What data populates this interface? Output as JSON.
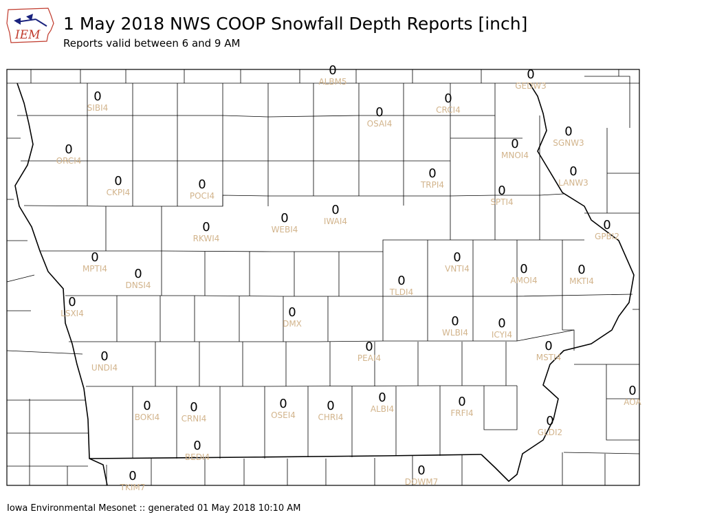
{
  "header": {
    "logo_text": "IEM",
    "title": "1 May 2018 NWS COOP Snowfall Depth Reports [inch]",
    "subtitle": "Reports valid between 6 and 9 AM"
  },
  "footer": {
    "text": "Iowa Environmental Mesonet :: generated 01 May 2018 10:10 AM"
  },
  "colors": {
    "station_label": "#d2b48c",
    "value_label": "#000000",
    "county_lines": "#000000",
    "logo_accent": "#c0392b",
    "logo_state": "#1a237e"
  },
  "stations": [
    {
      "id": "ALBM5",
      "value": "0"
    },
    {
      "id": "GEDW3",
      "value": "0"
    },
    {
      "id": "SIBI4",
      "value": "0"
    },
    {
      "id": "CRCI4",
      "value": "0"
    },
    {
      "id": "OSAI4",
      "value": "0"
    },
    {
      "id": "SGNW3",
      "value": "0"
    },
    {
      "id": "ORCI4",
      "value": "0"
    },
    {
      "id": "MNOI4",
      "value": "0"
    },
    {
      "id": "LANW3",
      "value": "0"
    },
    {
      "id": "CKPI4",
      "value": "0"
    },
    {
      "id": "POCI4",
      "value": "0"
    },
    {
      "id": "TRPI4",
      "value": "0"
    },
    {
      "id": "SPTI4",
      "value": "0"
    },
    {
      "id": "IWAI4",
      "value": "0"
    },
    {
      "id": "WEBI4",
      "value": "0"
    },
    {
      "id": "RKWI4",
      "value": "0"
    },
    {
      "id": "GPBI2",
      "value": "0"
    },
    {
      "id": "MPTI4",
      "value": "0"
    },
    {
      "id": "VNTI4",
      "value": "0"
    },
    {
      "id": "DNSI4",
      "value": "0"
    },
    {
      "id": "AMOI4",
      "value": "0"
    },
    {
      "id": "MKTI4",
      "value": "0"
    },
    {
      "id": "TLDI4",
      "value": "0"
    },
    {
      "id": "LSXI4",
      "value": "0"
    },
    {
      "id": "DMX",
      "value": "0"
    },
    {
      "id": "WLBI4",
      "value": "0"
    },
    {
      "id": "ICYI4",
      "value": "0"
    },
    {
      "id": "PEAI4",
      "value": "0"
    },
    {
      "id": "MSTI4",
      "value": "0"
    },
    {
      "id": "UNDI4",
      "value": "0"
    },
    {
      "id": "AOA",
      "value": "0"
    },
    {
      "id": "BOKI4",
      "value": "0"
    },
    {
      "id": "CRNI4",
      "value": "0"
    },
    {
      "id": "OSEI4",
      "value": "0"
    },
    {
      "id": "CHRI4",
      "value": "0"
    },
    {
      "id": "ALBI4",
      "value": "0"
    },
    {
      "id": "FRFI4",
      "value": "0"
    },
    {
      "id": "GLDI2",
      "value": "0"
    },
    {
      "id": "BEDI4",
      "value": "0"
    },
    {
      "id": "DOWM7",
      "value": "0"
    },
    {
      "id": "TKIM7",
      "value": "0"
    }
  ]
}
